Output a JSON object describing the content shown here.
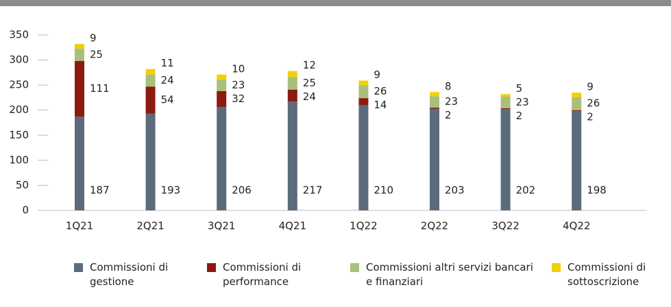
{
  "chart_data": {
    "type": "stacked-bar",
    "categories": [
      "1Q21",
      "2Q21",
      "3Q21",
      "4Q21",
      "1Q22",
      "2Q22",
      "3Q22",
      "4Q22"
    ],
    "series": [
      {
        "name": "Commissioni di gestione",
        "color": "#5b6b7b",
        "values": [
          187,
          193,
          206,
          217,
          210,
          203,
          202,
          198
        ]
      },
      {
        "name": "Commissioni di performance",
        "color": "#8b1a10",
        "values": [
          111,
          54,
          32,
          24,
          14,
          2,
          2,
          2
        ]
      },
      {
        "name": "Commissioni altri servizi bancari e finanziari",
        "color": "#a9c07a",
        "values": [
          25,
          24,
          23,
          25,
          26,
          23,
          23,
          26
        ]
      },
      {
        "name": "Commissioni di sottoscrizione",
        "color": "#f2d100",
        "values": [
          9,
          11,
          10,
          12,
          9,
          8,
          5,
          9
        ]
      }
    ],
    "ylim": [
      0,
      350
    ],
    "yticks": [
      0,
      50,
      100,
      150,
      200,
      250,
      300,
      350
    ],
    "legend": "bottom"
  }
}
